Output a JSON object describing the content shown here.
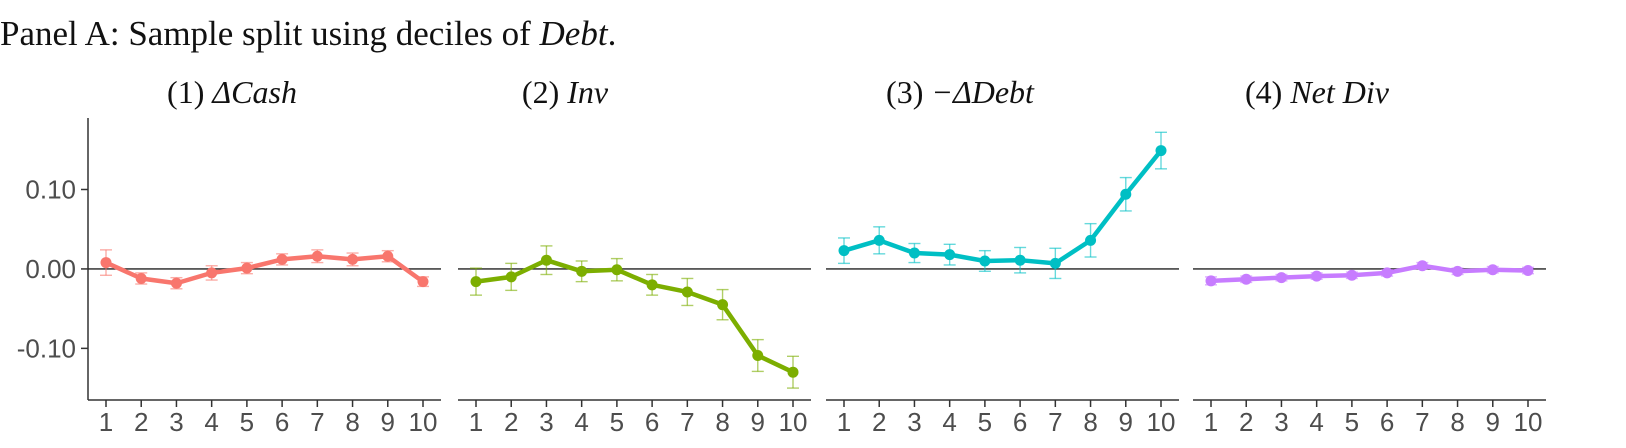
{
  "panel": {
    "title_prefix": "Panel A: Sample split using deciles of ",
    "title_emph": "Debt",
    "title_suffix": "."
  },
  "chart_data": {
    "type": "line",
    "x": [
      1,
      2,
      3,
      4,
      5,
      6,
      7,
      8,
      9,
      10
    ],
    "xticklabels": [
      "1",
      "2",
      "3",
      "4",
      "5",
      "6",
      "7",
      "8",
      "9",
      "10"
    ],
    "yticklabels": [
      "0.10",
      "0.00",
      "-0.10"
    ],
    "yticks": [
      0.1,
      0.0,
      -0.1
    ],
    "ylim": [
      -0.165,
      0.19
    ],
    "reference_line": 0,
    "grid": false,
    "legend": "none",
    "facets": [
      {
        "title_num": "(1) ",
        "title_var": "ΔCash",
        "color": "#F8766D",
        "values": [
          0.008,
          -0.012,
          -0.018,
          -0.005,
          0.001,
          0.012,
          0.016,
          0.012,
          0.016,
          -0.016
        ],
        "err": [
          0.016,
          0.007,
          0.007,
          0.009,
          0.007,
          0.007,
          0.008,
          0.008,
          0.007,
          0.006
        ]
      },
      {
        "title_num": "(2) ",
        "title_var": "Inv",
        "color": "#7CAE00",
        "values": [
          -0.016,
          -0.01,
          0.011,
          -0.003,
          -0.001,
          -0.02,
          -0.029,
          -0.045,
          -0.109,
          -0.13
        ],
        "err": [
          0.017,
          0.017,
          0.018,
          0.013,
          0.014,
          0.013,
          0.017,
          0.019,
          0.02,
          0.02
        ]
      },
      {
        "title_num": "(3) ",
        "title_var": "−ΔDebt",
        "color": "#00BFC4",
        "values": [
          0.023,
          0.036,
          0.02,
          0.018,
          0.01,
          0.011,
          0.007,
          0.036,
          0.094,
          0.149
        ],
        "err": [
          0.016,
          0.017,
          0.012,
          0.013,
          0.013,
          0.016,
          0.019,
          0.021,
          0.021,
          0.023
        ]
      },
      {
        "title_num": "(4) ",
        "title_var": "Net Div",
        "color": "#C77CFF",
        "values": [
          -0.015,
          -0.013,
          -0.011,
          -0.009,
          -0.008,
          -0.005,
          0.004,
          -0.003,
          -0.001,
          -0.002
        ],
        "err": [
          0.005,
          0.004,
          0.004,
          0.004,
          0.004,
          0.004,
          0.004,
          0.004,
          0.004,
          0.004
        ]
      }
    ]
  }
}
